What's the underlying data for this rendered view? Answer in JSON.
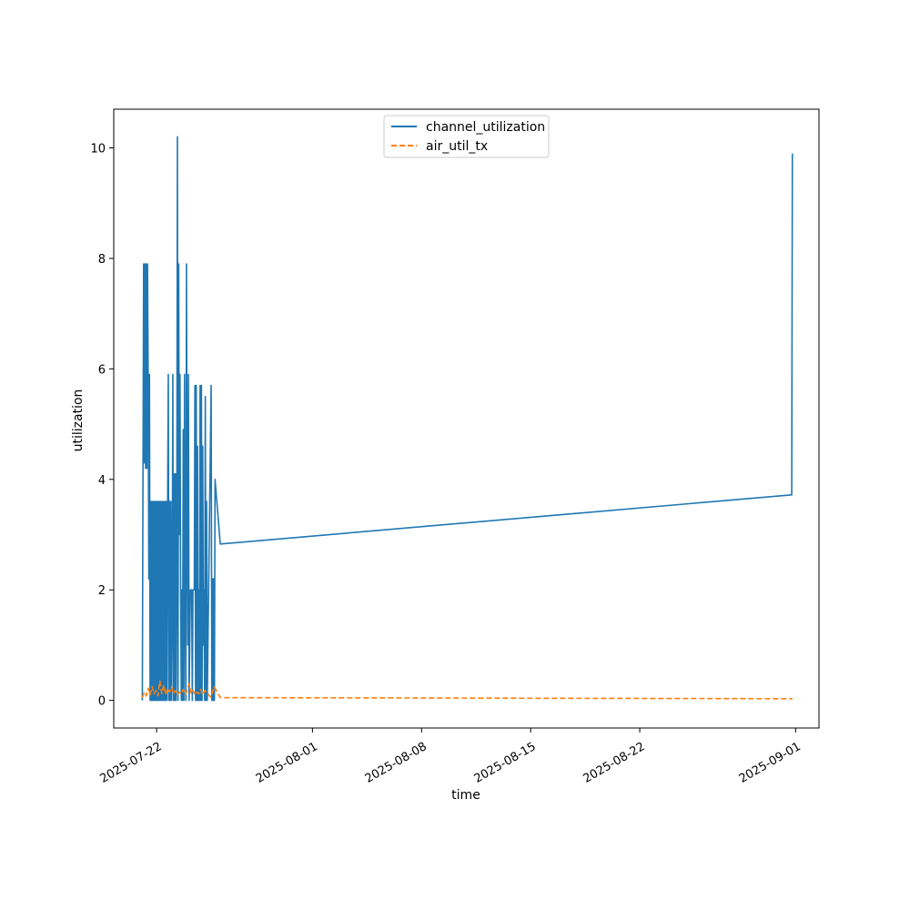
{
  "chart_data": {
    "type": "line",
    "title": "",
    "xlabel": "time",
    "ylabel": "utilization",
    "x_type": "date",
    "xlim": [
      "2025-07-19T06:00",
      "2025-09-02T12:00"
    ],
    "ylim": [
      -0.5,
      10.7
    ],
    "x_ticks": [
      "2025-07-22",
      "2025-08-01",
      "2025-08-08",
      "2025-08-15",
      "2025-08-22",
      "2025-09-01"
    ],
    "y_ticks": [
      0,
      2,
      4,
      6,
      8,
      10
    ],
    "grid": false,
    "legend_position": "top-center",
    "series": [
      {
        "name": "channel_utilization",
        "color": "#1f77b4",
        "dash": "solid",
        "points": [
          [
            "2025-07-21T02:00",
            0.0
          ],
          [
            "2025-07-21T04:00",
            7.9
          ],
          [
            "2025-07-21T05:00",
            4.3
          ],
          [
            "2025-07-21T06:00",
            7.9
          ],
          [
            "2025-07-21T07:00",
            4.2
          ],
          [
            "2025-07-21T08:00",
            7.9
          ],
          [
            "2025-07-21T09:00",
            4.2
          ],
          [
            "2025-07-21T10:00",
            7.9
          ],
          [
            "2025-07-21T11:00",
            5.8
          ],
          [
            "2025-07-21T12:00",
            2.2
          ],
          [
            "2025-07-21T13:00",
            5.9
          ],
          [
            "2025-07-21T14:00",
            0.0
          ],
          [
            "2025-07-21T15:00",
            3.6
          ],
          [
            "2025-07-21T16:00",
            0.0
          ],
          [
            "2025-07-21T17:00",
            3.6
          ],
          [
            "2025-07-21T18:00",
            0.0
          ],
          [
            "2025-07-21T19:00",
            3.6
          ],
          [
            "2025-07-21T20:00",
            0.0
          ],
          [
            "2025-07-21T21:00",
            3.6
          ],
          [
            "2025-07-21T22:00",
            0.0
          ],
          [
            "2025-07-21T23:00",
            3.6
          ],
          [
            "2025-07-22T00:00",
            0.0
          ],
          [
            "2025-07-22T01:00",
            3.6
          ],
          [
            "2025-07-22T02:00",
            0.0
          ],
          [
            "2025-07-22T03:00",
            3.6
          ],
          [
            "2025-07-22T04:00",
            0.0
          ],
          [
            "2025-07-22T05:00",
            3.6
          ],
          [
            "2025-07-22T06:00",
            0.0
          ],
          [
            "2025-07-22T07:00",
            3.6
          ],
          [
            "2025-07-22T08:00",
            0.0
          ],
          [
            "2025-07-22T09:00",
            3.6
          ],
          [
            "2025-07-22T10:00",
            0.0
          ],
          [
            "2025-07-22T11:00",
            3.6
          ],
          [
            "2025-07-22T12:00",
            0.0
          ],
          [
            "2025-07-22T13:00",
            3.6
          ],
          [
            "2025-07-22T14:00",
            0.0
          ],
          [
            "2025-07-22T15:00",
            3.6
          ],
          [
            "2025-07-22T16:00",
            0.0
          ],
          [
            "2025-07-22T17:00",
            3.6
          ],
          [
            "2025-07-22T18:00",
            5.9
          ],
          [
            "2025-07-22T19:00",
            0.0
          ],
          [
            "2025-07-22T20:00",
            3.6
          ],
          [
            "2025-07-22T21:00",
            0.0
          ],
          [
            "2025-07-22T22:00",
            3.6
          ],
          [
            "2025-07-22T23:00",
            0.0
          ],
          [
            "2025-07-23T00:00",
            1.8
          ],
          [
            "2025-07-23T01:00",
            5.9
          ],
          [
            "2025-07-23T02:00",
            0.0
          ],
          [
            "2025-07-23T03:00",
            4.1
          ],
          [
            "2025-07-23T04:00",
            0.0
          ],
          [
            "2025-07-23T05:00",
            4.1
          ],
          [
            "2025-07-23T06:00",
            0.0
          ],
          [
            "2025-07-23T07:00",
            2.2
          ],
          [
            "2025-07-23T08:00",
            10.2
          ],
          [
            "2025-07-23T09:00",
            0.0
          ],
          [
            "2025-07-23T10:00",
            7.9
          ],
          [
            "2025-07-23T11:00",
            3.0
          ],
          [
            "2025-07-23T12:00",
            5.9
          ],
          [
            "2025-07-23T13:00",
            2.0
          ],
          [
            "2025-07-23T14:00",
            0.0
          ],
          [
            "2025-07-23T15:00",
            2.0
          ],
          [
            "2025-07-23T16:00",
            0.0
          ],
          [
            "2025-07-23T17:00",
            4.9
          ],
          [
            "2025-07-23T18:00",
            0.0
          ],
          [
            "2025-07-23T19:00",
            5.9
          ],
          [
            "2025-07-23T20:00",
            2.0
          ],
          [
            "2025-07-23T21:00",
            0.0
          ],
          [
            "2025-07-23T22:00",
            7.9
          ],
          [
            "2025-07-23T23:00",
            3.3
          ],
          [
            "2025-07-24T00:00",
            1.0
          ],
          [
            "2025-07-24T01:00",
            5.9
          ],
          [
            "2025-07-24T02:00",
            0.0
          ],
          [
            "2025-07-24T04:00",
            2.0
          ],
          [
            "2025-07-24T06:00",
            2.0
          ],
          [
            "2025-07-24T07:00",
            0.0
          ],
          [
            "2025-07-24T08:00",
            2.0
          ],
          [
            "2025-07-24T10:00",
            2.0
          ],
          [
            "2025-07-24T11:00",
            5.7
          ],
          [
            "2025-07-24T12:00",
            0.0
          ],
          [
            "2025-07-24T13:00",
            5.7
          ],
          [
            "2025-07-24T14:00",
            0.0
          ],
          [
            "2025-07-24T15:00",
            4.6
          ],
          [
            "2025-07-24T16:00",
            0.0
          ],
          [
            "2025-07-24T17:00",
            2.0
          ],
          [
            "2025-07-24T18:00",
            0.0
          ],
          [
            "2025-07-24T19:00",
            5.7
          ],
          [
            "2025-07-24T20:00",
            0.0
          ],
          [
            "2025-07-24T21:00",
            5.7
          ],
          [
            "2025-07-24T22:00",
            0.0
          ],
          [
            "2025-07-24T23:00",
            4.6
          ],
          [
            "2025-07-25T00:00",
            1.0
          ],
          [
            "2025-07-25T01:00",
            2.0
          ],
          [
            "2025-07-25T02:00",
            0.0
          ],
          [
            "2025-07-25T03:00",
            5.5
          ],
          [
            "2025-07-25T04:00",
            0.0
          ],
          [
            "2025-07-25T05:00",
            3.6
          ],
          [
            "2025-07-25T06:00",
            0.0
          ],
          [
            "2025-07-25T12:00",
            5.7
          ],
          [
            "2025-07-25T13:00",
            0.0
          ],
          [
            "2025-07-25T14:00",
            2.2
          ],
          [
            "2025-07-25T15:00",
            0.0
          ],
          [
            "2025-07-25T16:00",
            2.2
          ],
          [
            "2025-07-25T17:00",
            0.0
          ],
          [
            "2025-07-25T18:00",
            4.0
          ],
          [
            "2025-07-26T02:00",
            2.83
          ],
          [
            "2025-08-31T18:00",
            3.72
          ],
          [
            "2025-08-31T19:00",
            9.9
          ]
        ]
      },
      {
        "name": "air_util_tx",
        "color": "#ff7f0e",
        "dash": "dashed",
        "points": [
          [
            "2025-07-21T02:00",
            0.05
          ],
          [
            "2025-07-21T05:00",
            0.15
          ],
          [
            "2025-07-21T08:00",
            0.08
          ],
          [
            "2025-07-21T11:00",
            0.22
          ],
          [
            "2025-07-21T14:00",
            0.1
          ],
          [
            "2025-07-21T17:00",
            0.25
          ],
          [
            "2025-07-21T20:00",
            0.12
          ],
          [
            "2025-07-21T23:00",
            0.18
          ],
          [
            "2025-07-22T02:00",
            0.08
          ],
          [
            "2025-07-22T05:00",
            0.35
          ],
          [
            "2025-07-22T08:00",
            0.12
          ],
          [
            "2025-07-22T11:00",
            0.28
          ],
          [
            "2025-07-22T14:00",
            0.1
          ],
          [
            "2025-07-22T17:00",
            0.22
          ],
          [
            "2025-07-22T20:00",
            0.15
          ],
          [
            "2025-07-22T23:00",
            0.25
          ],
          [
            "2025-07-23T02:00",
            0.12
          ],
          [
            "2025-07-23T05:00",
            0.18
          ],
          [
            "2025-07-23T08:00",
            0.1
          ],
          [
            "2025-07-23T11:00",
            0.15
          ],
          [
            "2025-07-23T14:00",
            0.12
          ],
          [
            "2025-07-23T17:00",
            0.2
          ],
          [
            "2025-07-23T20:00",
            0.1
          ],
          [
            "2025-07-23T23:00",
            0.18
          ],
          [
            "2025-07-24T02:00",
            0.3
          ],
          [
            "2025-07-24T05:00",
            0.12
          ],
          [
            "2025-07-24T08:00",
            0.18
          ],
          [
            "2025-07-24T11:00",
            0.1
          ],
          [
            "2025-07-24T14:00",
            0.15
          ],
          [
            "2025-07-24T17:00",
            0.12
          ],
          [
            "2025-07-24T20:00",
            0.2
          ],
          [
            "2025-07-24T23:00",
            0.1
          ],
          [
            "2025-07-25T02:00",
            0.18
          ],
          [
            "2025-07-25T05:00",
            0.15
          ],
          [
            "2025-07-25T12:00",
            0.05
          ],
          [
            "2025-07-25T16:00",
            0.25
          ],
          [
            "2025-07-25T19:00",
            0.2
          ],
          [
            "2025-07-26T02:00",
            0.05
          ],
          [
            "2025-08-31T19:00",
            0.03
          ]
        ]
      }
    ]
  }
}
